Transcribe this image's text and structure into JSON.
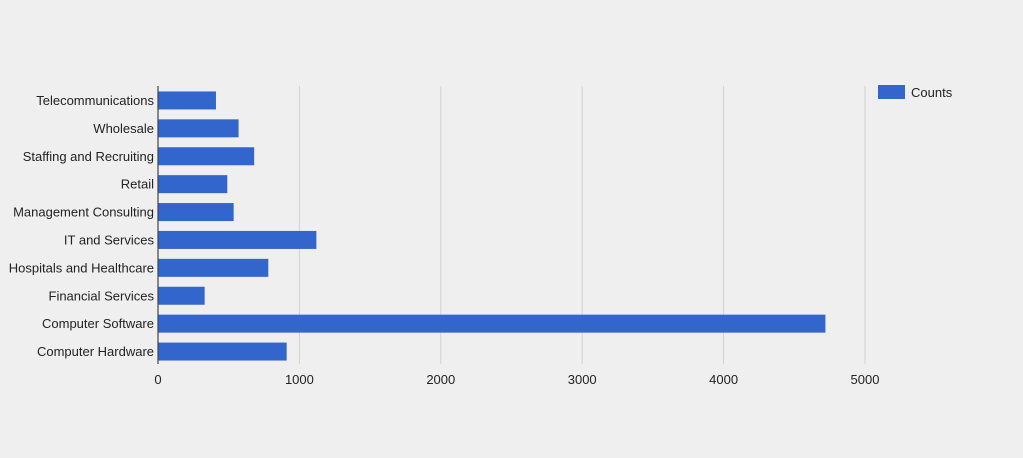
{
  "chart_data": {
    "type": "bar",
    "orientation": "horizontal",
    "title": "",
    "xlabel": "",
    "ylabel": "",
    "categories": [
      "Telecommunications",
      "Wholesale",
      "Staffing and Recruiting",
      "Retail",
      "Management Consulting",
      "IT and Services",
      "Hospitals and Healthcare",
      "Financial Services",
      "Computer Software",
      "Computer Hardware"
    ],
    "series": [
      {
        "name": "Counts",
        "color": "#3366cc",
        "values": [
          410,
          570,
          680,
          490,
          535,
          1120,
          780,
          330,
          4720,
          910
        ]
      }
    ],
    "xlim": [
      0,
      5000
    ],
    "xticks": [
      0,
      1000,
      2000,
      3000,
      4000,
      5000
    ],
    "grid": true,
    "legend": "top-right",
    "colors": {
      "background": "#efefef",
      "gridline": "#d2d2d2",
      "axis": "#444444",
      "text": "#222222"
    }
  }
}
